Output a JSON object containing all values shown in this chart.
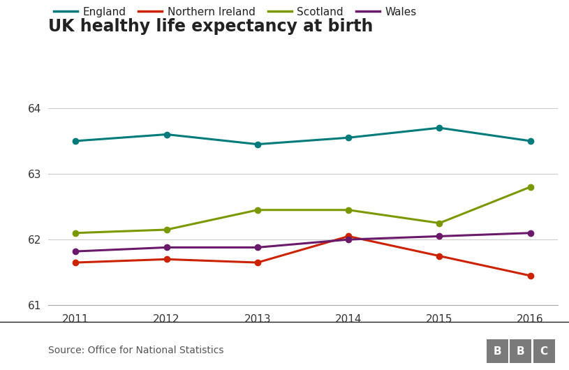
{
  "title": "UK healthy life expectancy at birth",
  "years": [
    2011,
    2012,
    2013,
    2014,
    2015,
    2016
  ],
  "series": {
    "England": {
      "values": [
        63.5,
        63.6,
        63.45,
        63.55,
        63.7,
        63.5
      ],
      "color": "#007a7a",
      "marker": "o"
    },
    "Northern Ireland": {
      "values": [
        61.65,
        61.7,
        61.65,
        62.05,
        61.75,
        61.45
      ],
      "color": "#cc2200",
      "marker": "o"
    },
    "Scotland": {
      "values": [
        62.1,
        62.15,
        62.45,
        62.45,
        62.25,
        62.8
      ],
      "color": "#7a9900",
      "marker": "o"
    },
    "Wales": {
      "values": [
        61.82,
        61.88,
        61.88,
        62.0,
        62.05,
        62.1
      ],
      "color": "#6b1a6b",
      "marker": "o"
    }
  },
  "ylim": [
    61.0,
    64.35
  ],
  "yticks": [
    61,
    62,
    63,
    64
  ],
  "source_text": "Source: Office for National Statistics",
  "background_color": "#ffffff",
  "grid_color": "#cccccc",
  "legend_order": [
    "England",
    "Northern Ireland",
    "Scotland",
    "Wales"
  ],
  "title_fontsize": 17,
  "tick_fontsize": 11,
  "legend_fontsize": 11,
  "linewidth": 2.2,
  "markersize": 6,
  "source_fontsize": 10,
  "bbc_box_color": "#7a7a7a",
  "bbc_text_color": "#ffffff"
}
